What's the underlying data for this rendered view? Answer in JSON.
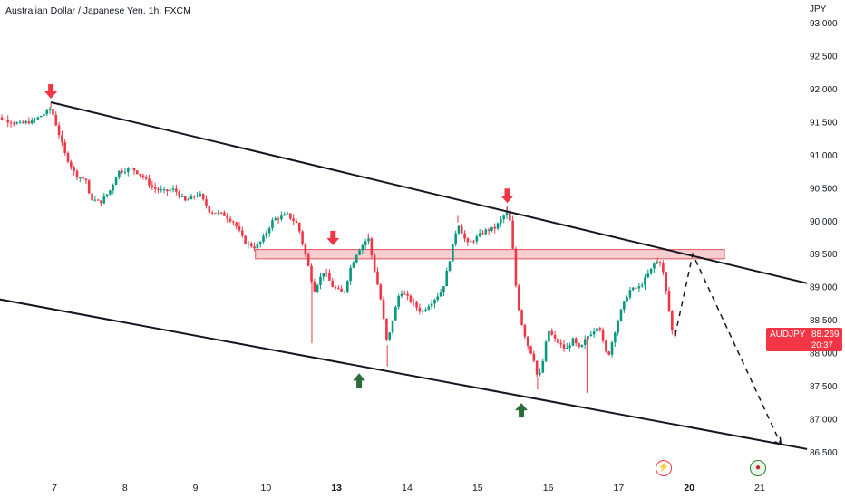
{
  "header": {
    "title": "Australian Dollar / Japanese Yen, 1h, FXCM",
    "currency": "JPY"
  },
  "last_price": {
    "symbol": "AUDJPY",
    "price": "88.269",
    "countdown": "20:37"
  },
  "colors": {
    "up": "#089981",
    "down": "#f23645",
    "zone_fill": "#f7c5c8",
    "zone_stroke": "#e0535d",
    "arrow_down": "#f23645",
    "arrow_up": "#2e6b3a",
    "line": "#131722"
  },
  "chart_data": {
    "type": "candlestick",
    "title": "Australian Dollar / Japanese Yen, 1h, FXCM",
    "y_axis": {
      "min": 86.5,
      "max": 93.0,
      "ticks": [
        "93.000",
        "92.500",
        "92.000",
        "91.500",
        "91.000",
        "90.500",
        "90.000",
        "89.500",
        "89.000",
        "88.500",
        "88.000",
        "87.500",
        "87.000",
        "86.500"
      ]
    },
    "x_ticks": [
      {
        "label": "7",
        "t": 1.0,
        "bold": false
      },
      {
        "label": "8",
        "t": 2.0,
        "bold": false
      },
      {
        "label": "9",
        "t": 3.0,
        "bold": false
      },
      {
        "label": "10",
        "t": 4.0,
        "bold": false
      },
      {
        "label": "13",
        "t": 5.0,
        "bold": true
      },
      {
        "label": "14",
        "t": 6.0,
        "bold": false
      },
      {
        "label": "15",
        "t": 7.0,
        "bold": false
      },
      {
        "label": "16",
        "t": 8.0,
        "bold": false
      },
      {
        "label": "17",
        "t": 9.0,
        "bold": false
      },
      {
        "label": "20",
        "t": 10.0,
        "bold": true
      },
      {
        "label": "21",
        "t": 11.0,
        "bold": false
      }
    ],
    "close_path": [
      [
        0.0,
        91.62
      ],
      [
        0.25,
        91.55
      ],
      [
        0.5,
        91.47
      ],
      [
        0.7,
        91.52
      ],
      [
        0.9,
        91.66
      ],
      [
        0.95,
        91.72
      ],
      [
        1.07,
        91.3
      ],
      [
        1.15,
        91.02
      ],
      [
        1.3,
        90.7
      ],
      [
        1.45,
        90.62
      ],
      [
        1.5,
        90.35
      ],
      [
        1.65,
        90.28
      ],
      [
        1.8,
        90.48
      ],
      [
        1.9,
        90.75
      ],
      [
        2.1,
        90.8
      ],
      [
        2.25,
        90.68
      ],
      [
        2.4,
        90.5
      ],
      [
        2.55,
        90.45
      ],
      [
        2.7,
        90.48
      ],
      [
        2.85,
        90.3
      ],
      [
        3.05,
        90.42
      ],
      [
        3.2,
        90.15
      ],
      [
        3.4,
        90.1
      ],
      [
        3.55,
        89.98
      ],
      [
        3.7,
        89.68
      ],
      [
        3.85,
        89.6
      ],
      [
        3.95,
        89.72
      ],
      [
        4.1,
        90.02
      ],
      [
        4.3,
        90.1
      ],
      [
        4.45,
        89.95
      ],
      [
        4.6,
        89.32
      ],
      [
        4.68,
        88.95
      ],
      [
        4.82,
        89.25
      ],
      [
        4.95,
        89.0
      ],
      [
        5.1,
        88.9
      ],
      [
        5.2,
        89.3
      ],
      [
        5.3,
        89.55
      ],
      [
        5.45,
        89.75
      ],
      [
        5.52,
        89.35
      ],
      [
        5.62,
        88.85
      ],
      [
        5.72,
        88.12
      ],
      [
        5.78,
        88.45
      ],
      [
        5.9,
        88.95
      ],
      [
        6.05,
        88.8
      ],
      [
        6.2,
        88.62
      ],
      [
        6.35,
        88.78
      ],
      [
        6.5,
        88.95
      ],
      [
        6.6,
        89.4
      ],
      [
        6.72,
        89.98
      ],
      [
        6.85,
        89.65
      ],
      [
        6.95,
        89.72
      ],
      [
        7.1,
        89.85
      ],
      [
        7.25,
        89.9
      ],
      [
        7.35,
        90.05
      ],
      [
        7.42,
        90.15
      ],
      [
        7.48,
        89.9
      ],
      [
        7.52,
        89.2
      ],
      [
        7.6,
        88.55
      ],
      [
        7.7,
        88.15
      ],
      [
        7.8,
        87.9
      ],
      [
        7.85,
        87.62
      ],
      [
        7.9,
        87.72
      ],
      [
        8.0,
        88.35
      ],
      [
        8.1,
        88.2
      ],
      [
        8.25,
        88.05
      ],
      [
        8.35,
        88.2
      ],
      [
        8.45,
        88.05
      ],
      [
        8.55,
        88.25
      ],
      [
        8.65,
        88.35
      ],
      [
        8.72,
        88.45
      ],
      [
        8.8,
        88.05
      ],
      [
        8.85,
        87.95
      ],
      [
        8.95,
        88.35
      ],
      [
        9.05,
        88.7
      ],
      [
        9.15,
        88.95
      ],
      [
        9.3,
        89.0
      ],
      [
        9.45,
        89.25
      ],
      [
        9.5,
        89.35
      ],
      [
        9.58,
        89.4
      ],
      [
        9.62,
        89.28
      ],
      [
        9.7,
        88.75
      ],
      [
        9.76,
        88.32
      ],
      [
        9.8,
        88.269
      ]
    ],
    "extremes": {
      "high": [
        [
          0.95,
          91.8
        ],
        [
          5.45,
          89.82
        ],
        [
          6.72,
          90.08
        ],
        [
          7.42,
          90.22
        ],
        [
          9.55,
          89.45
        ]
      ],
      "low": [
        [
          4.65,
          88.15
        ],
        [
          5.72,
          87.8
        ],
        [
          7.85,
          87.45
        ],
        [
          8.55,
          87.4
        ]
      ]
    },
    "annotations": {
      "channel_upper": [
        [
          0.95,
          91.8
        ],
        [
          11.67,
          89.06
        ]
      ],
      "channel_lower": [
        [
          -0.2,
          88.9
        ],
        [
          11.67,
          86.55
        ]
      ],
      "resistance_zone": {
        "t0": 3.85,
        "t1": 10.5,
        "y0": 89.43,
        "y1": 89.57
      },
      "projection": [
        [
          9.8,
          88.269
        ],
        [
          10.05,
          89.5
        ],
        [
          11.3,
          86.62
        ]
      ],
      "sell_arrows": [
        [
          0.95,
          91.8
        ],
        [
          4.95,
          89.58
        ],
        [
          7.42,
          90.22
        ]
      ],
      "buy_arrows": [
        [
          5.32,
          87.75
        ],
        [
          7.62,
          87.3
        ]
      ]
    }
  }
}
